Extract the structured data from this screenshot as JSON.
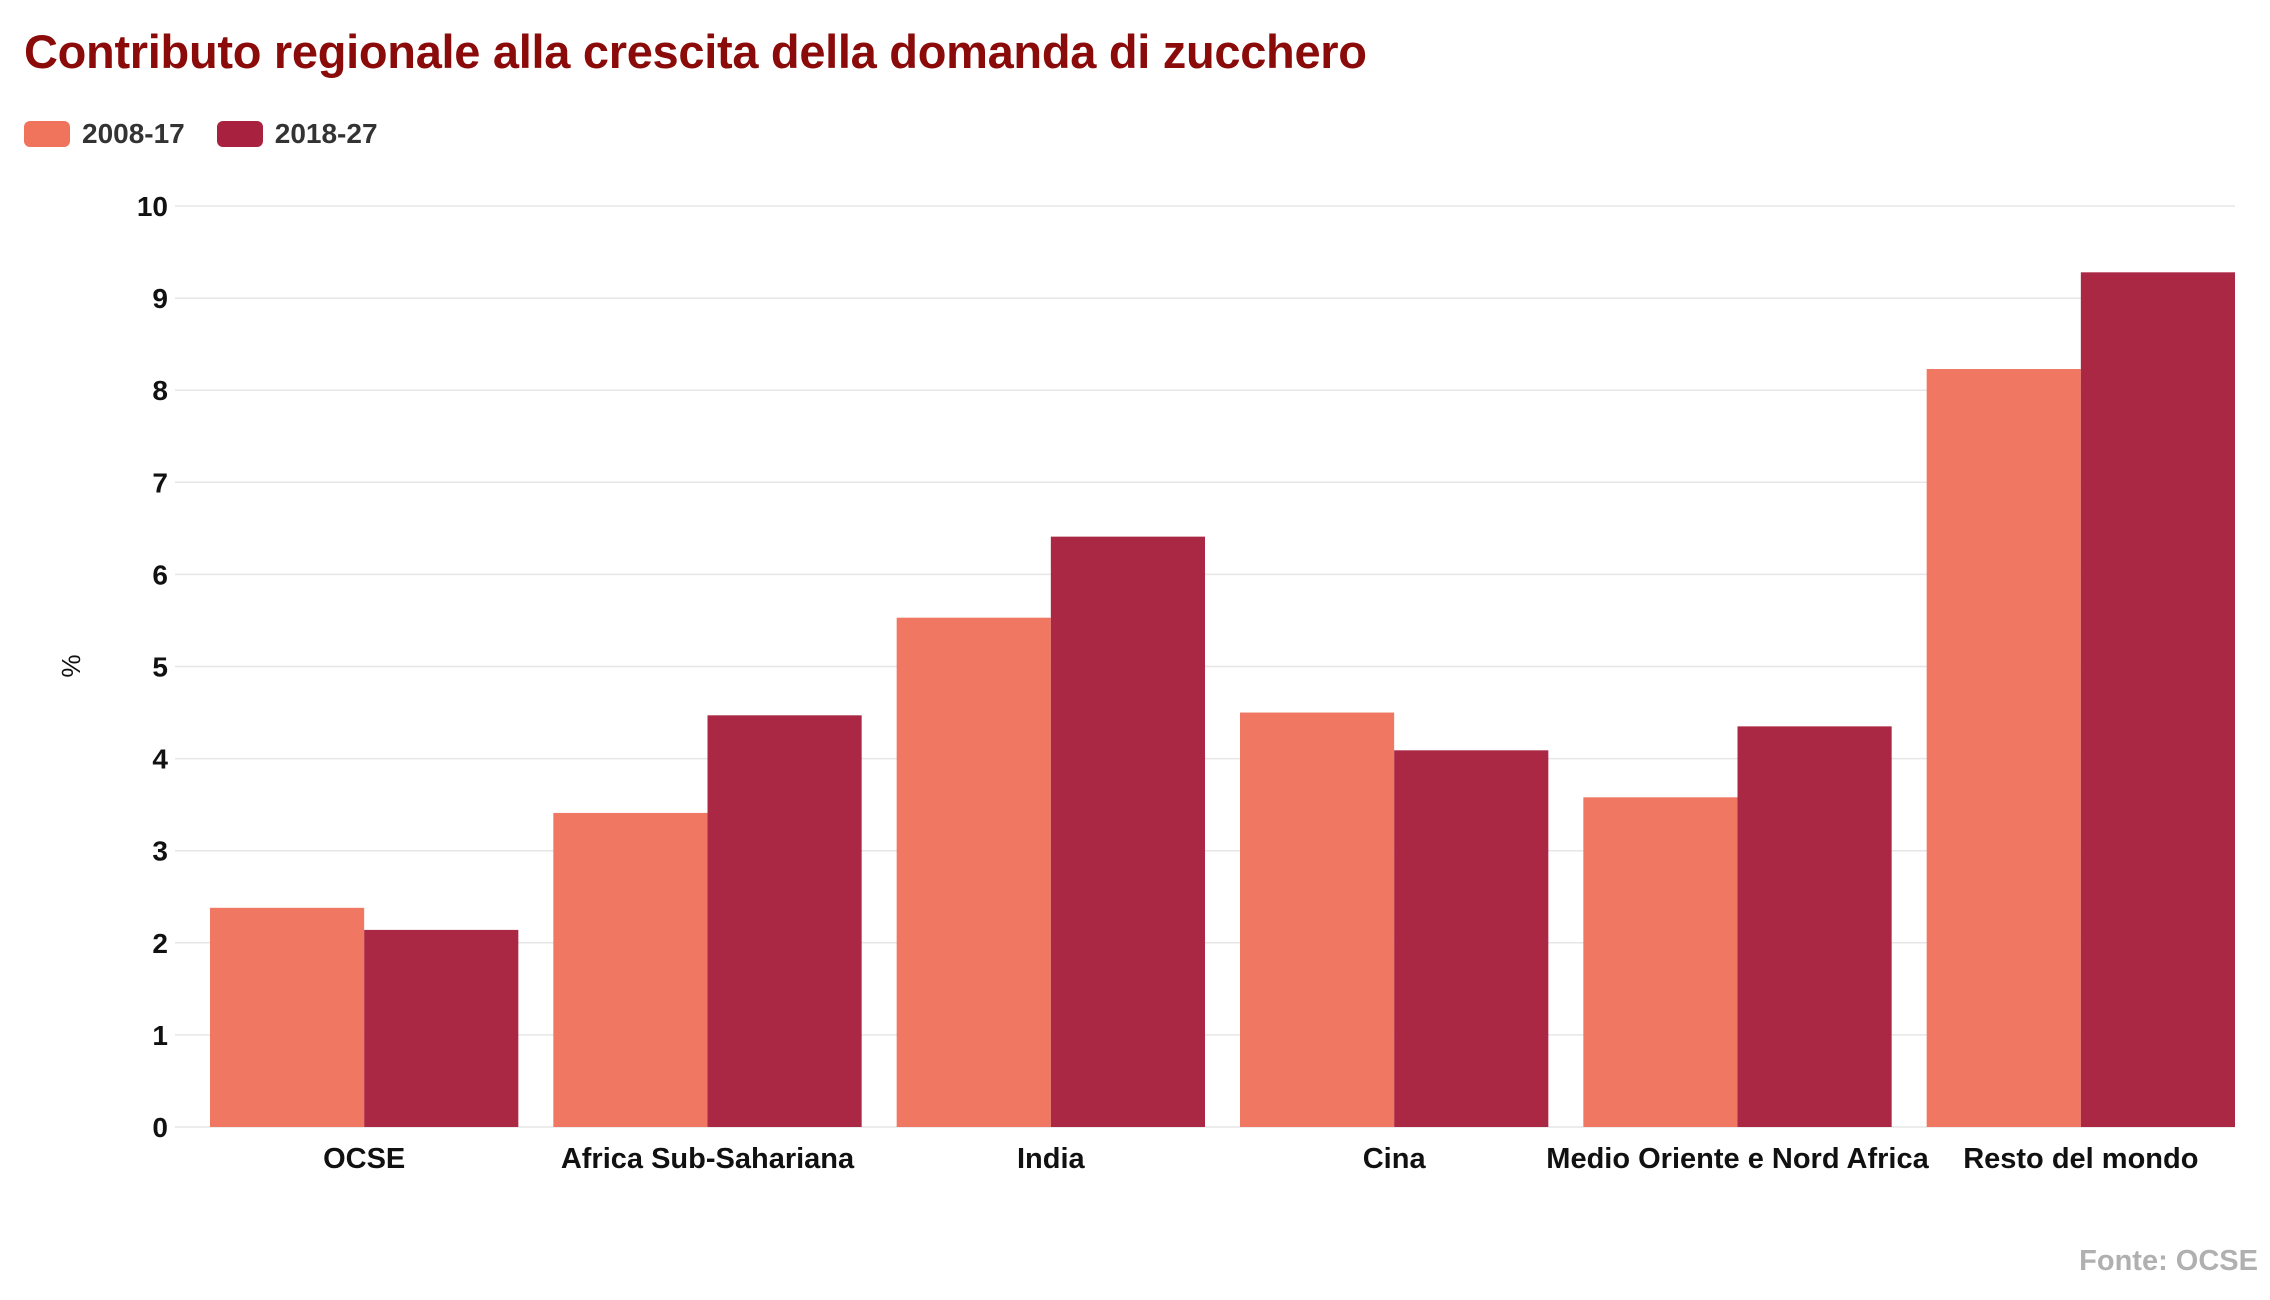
{
  "title": "Contributo regionale alla crescita della domanda di zucchero",
  "legend": [
    {
      "label": "2008-17",
      "color": "#f0735c"
    },
    {
      "label": "2018-27",
      "color": "#a8213f"
    }
  ],
  "source": "Fonte: OCSE",
  "chart_data": {
    "type": "bar",
    "categories": [
      "OCSE",
      "Africa Sub-Sahariana",
      "India",
      "Cina",
      "Medio Oriente e Nord Africa",
      "Resto del mondo"
    ],
    "series": [
      {
        "name": "2008-17",
        "color": "#f0735c",
        "values": [
          2.38,
          3.41,
          5.53,
          4.5,
          3.58,
          8.23
        ]
      },
      {
        "name": "2018-27",
        "color": "#a8213f",
        "values": [
          2.14,
          4.47,
          6.41,
          4.09,
          4.35,
          9.28
        ]
      }
    ],
    "ylabel": "%",
    "ylim": [
      0,
      10
    ],
    "yticks": [
      0,
      1,
      2,
      3,
      4,
      5,
      6,
      7,
      8,
      9,
      10
    ],
    "grid": true,
    "legend_position": "top-left"
  }
}
